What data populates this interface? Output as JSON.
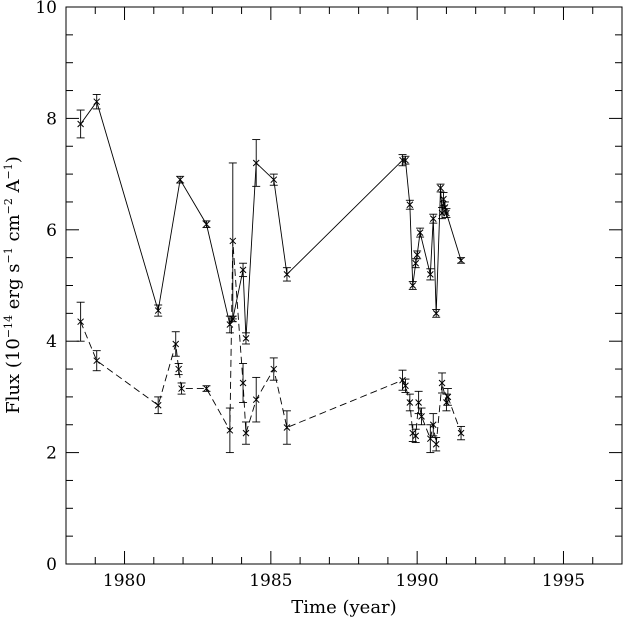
{
  "chart_data": {
    "type": "line",
    "title": "",
    "xlabel": "Time (year)",
    "ylabel": "Flux (10^-14 erg s^-1 cm^-2 A^-1)",
    "ylabel_parts": {
      "pre": "Flux (10",
      "exp1": "−14",
      "mid1": " erg s",
      "exp2": "−1",
      "mid2": " cm",
      "exp3": "−2",
      "mid3": " A",
      "exp4": "−1",
      "post": ")"
    },
    "xlim": [
      1978,
      1997
    ],
    "ylim": [
      0,
      10
    ],
    "xticks": [
      "1980",
      "1985",
      "1990",
      "1995"
    ],
    "yticks": [
      "0",
      "2",
      "4",
      "6",
      "8",
      "10"
    ],
    "grid": false,
    "series": [
      {
        "style": "solid",
        "points": [
          {
            "x": 1978.5,
            "y": 7.9,
            "e": 0.25
          },
          {
            "x": 1979.05,
            "y": 8.3,
            "e": 0.13
          },
          {
            "x": 1981.15,
            "y": 4.55,
            "e": 0.1
          },
          {
            "x": 1981.9,
            "y": 6.9,
            "e": 0.06
          },
          {
            "x": 1982.8,
            "y": 6.1,
            "e": 0.06
          },
          {
            "x": 1983.6,
            "y": 4.3,
            "e": 0.15
          },
          {
            "x": 1983.7,
            "y": 4.4,
            "e": 0.05
          },
          {
            "x": 1984.05,
            "y": 5.28,
            "e": 0.12
          },
          {
            "x": 1984.15,
            "y": 4.05,
            "e": 0.1
          },
          {
            "x": 1984.5,
            "y": 7.2,
            "e": 0.42
          },
          {
            "x": 1985.1,
            "y": 6.9,
            "e": 0.1
          },
          {
            "x": 1985.55,
            "y": 5.2,
            "e": 0.12
          },
          {
            "x": 1989.5,
            "y": 7.25,
            "e": 0.1
          },
          {
            "x": 1989.6,
            "y": 7.25,
            "e": 0.07
          },
          {
            "x": 1989.75,
            "y": 6.45,
            "e": 0.08
          },
          {
            "x": 1989.85,
            "y": 5.0,
            "e": 0.07
          },
          {
            "x": 1989.95,
            "y": 5.4,
            "e": 0.08
          },
          {
            "x": 1990.0,
            "y": 5.55,
            "e": 0.07
          },
          {
            "x": 1990.1,
            "y": 5.95,
            "e": 0.08
          },
          {
            "x": 1990.45,
            "y": 5.2,
            "e": 0.1
          },
          {
            "x": 1990.55,
            "y": 6.2,
            "e": 0.08
          },
          {
            "x": 1990.65,
            "y": 4.5,
            "e": 0.07
          },
          {
            "x": 1990.8,
            "y": 6.75,
            "e": 0.07
          },
          {
            "x": 1990.85,
            "y": 6.3,
            "e": 0.1
          },
          {
            "x": 1990.9,
            "y": 6.55,
            "e": 0.12
          },
          {
            "x": 1990.95,
            "y": 6.4,
            "e": 0.1
          },
          {
            "x": 1991.0,
            "y": 6.3,
            "e": 0.08
          },
          {
            "x": 1991.5,
            "y": 5.45,
            "e": 0.05
          }
        ]
      },
      {
        "style": "dashed",
        "points": [
          {
            "x": 1978.5,
            "y": 4.35,
            "e": 0.35
          },
          {
            "x": 1979.05,
            "y": 3.65,
            "e": 0.18
          },
          {
            "x": 1981.15,
            "y": 2.85,
            "e": 0.15
          },
          {
            "x": 1981.75,
            "y": 3.95,
            "e": 0.22
          },
          {
            "x": 1981.85,
            "y": 3.5,
            "e": 0.1
          },
          {
            "x": 1981.95,
            "y": 3.15,
            "e": 0.1
          },
          {
            "x": 1982.8,
            "y": 3.15,
            "e": 0.05
          },
          {
            "x": 1983.6,
            "y": 2.4,
            "e": 0.4
          },
          {
            "x": 1983.7,
            "y": 5.8,
            "e": 1.4
          },
          {
            "x": 1984.05,
            "y": 3.25,
            "e": 0.35
          },
          {
            "x": 1984.15,
            "y": 2.35,
            "e": 0.2
          },
          {
            "x": 1984.5,
            "y": 2.95,
            "e": 0.4
          },
          {
            "x": 1985.1,
            "y": 3.5,
            "e": 0.2
          },
          {
            "x": 1985.55,
            "y": 2.45,
            "e": 0.3
          },
          {
            "x": 1989.5,
            "y": 3.3,
            "e": 0.18
          },
          {
            "x": 1989.6,
            "y": 3.2,
            "e": 0.12
          },
          {
            "x": 1989.75,
            "y": 2.9,
            "e": 0.15
          },
          {
            "x": 1989.85,
            "y": 2.35,
            "e": 0.15
          },
          {
            "x": 1989.95,
            "y": 2.3,
            "e": 0.12
          },
          {
            "x": 1990.05,
            "y": 2.9,
            "e": 0.2
          },
          {
            "x": 1990.15,
            "y": 2.65,
            "e": 0.15
          },
          {
            "x": 1990.45,
            "y": 2.25,
            "e": 0.25
          },
          {
            "x": 1990.55,
            "y": 2.5,
            "e": 0.2
          },
          {
            "x": 1990.65,
            "y": 2.15,
            "e": 0.12
          },
          {
            "x": 1990.85,
            "y": 3.25,
            "e": 0.18
          },
          {
            "x": 1991.0,
            "y": 2.9,
            "e": 0.15
          },
          {
            "x": 1991.05,
            "y": 3.0,
            "e": 0.15
          },
          {
            "x": 1991.5,
            "y": 2.35,
            "e": 0.12
          }
        ]
      }
    ],
    "colors": {
      "ink": "#000000",
      "background": "#ffffff"
    }
  }
}
